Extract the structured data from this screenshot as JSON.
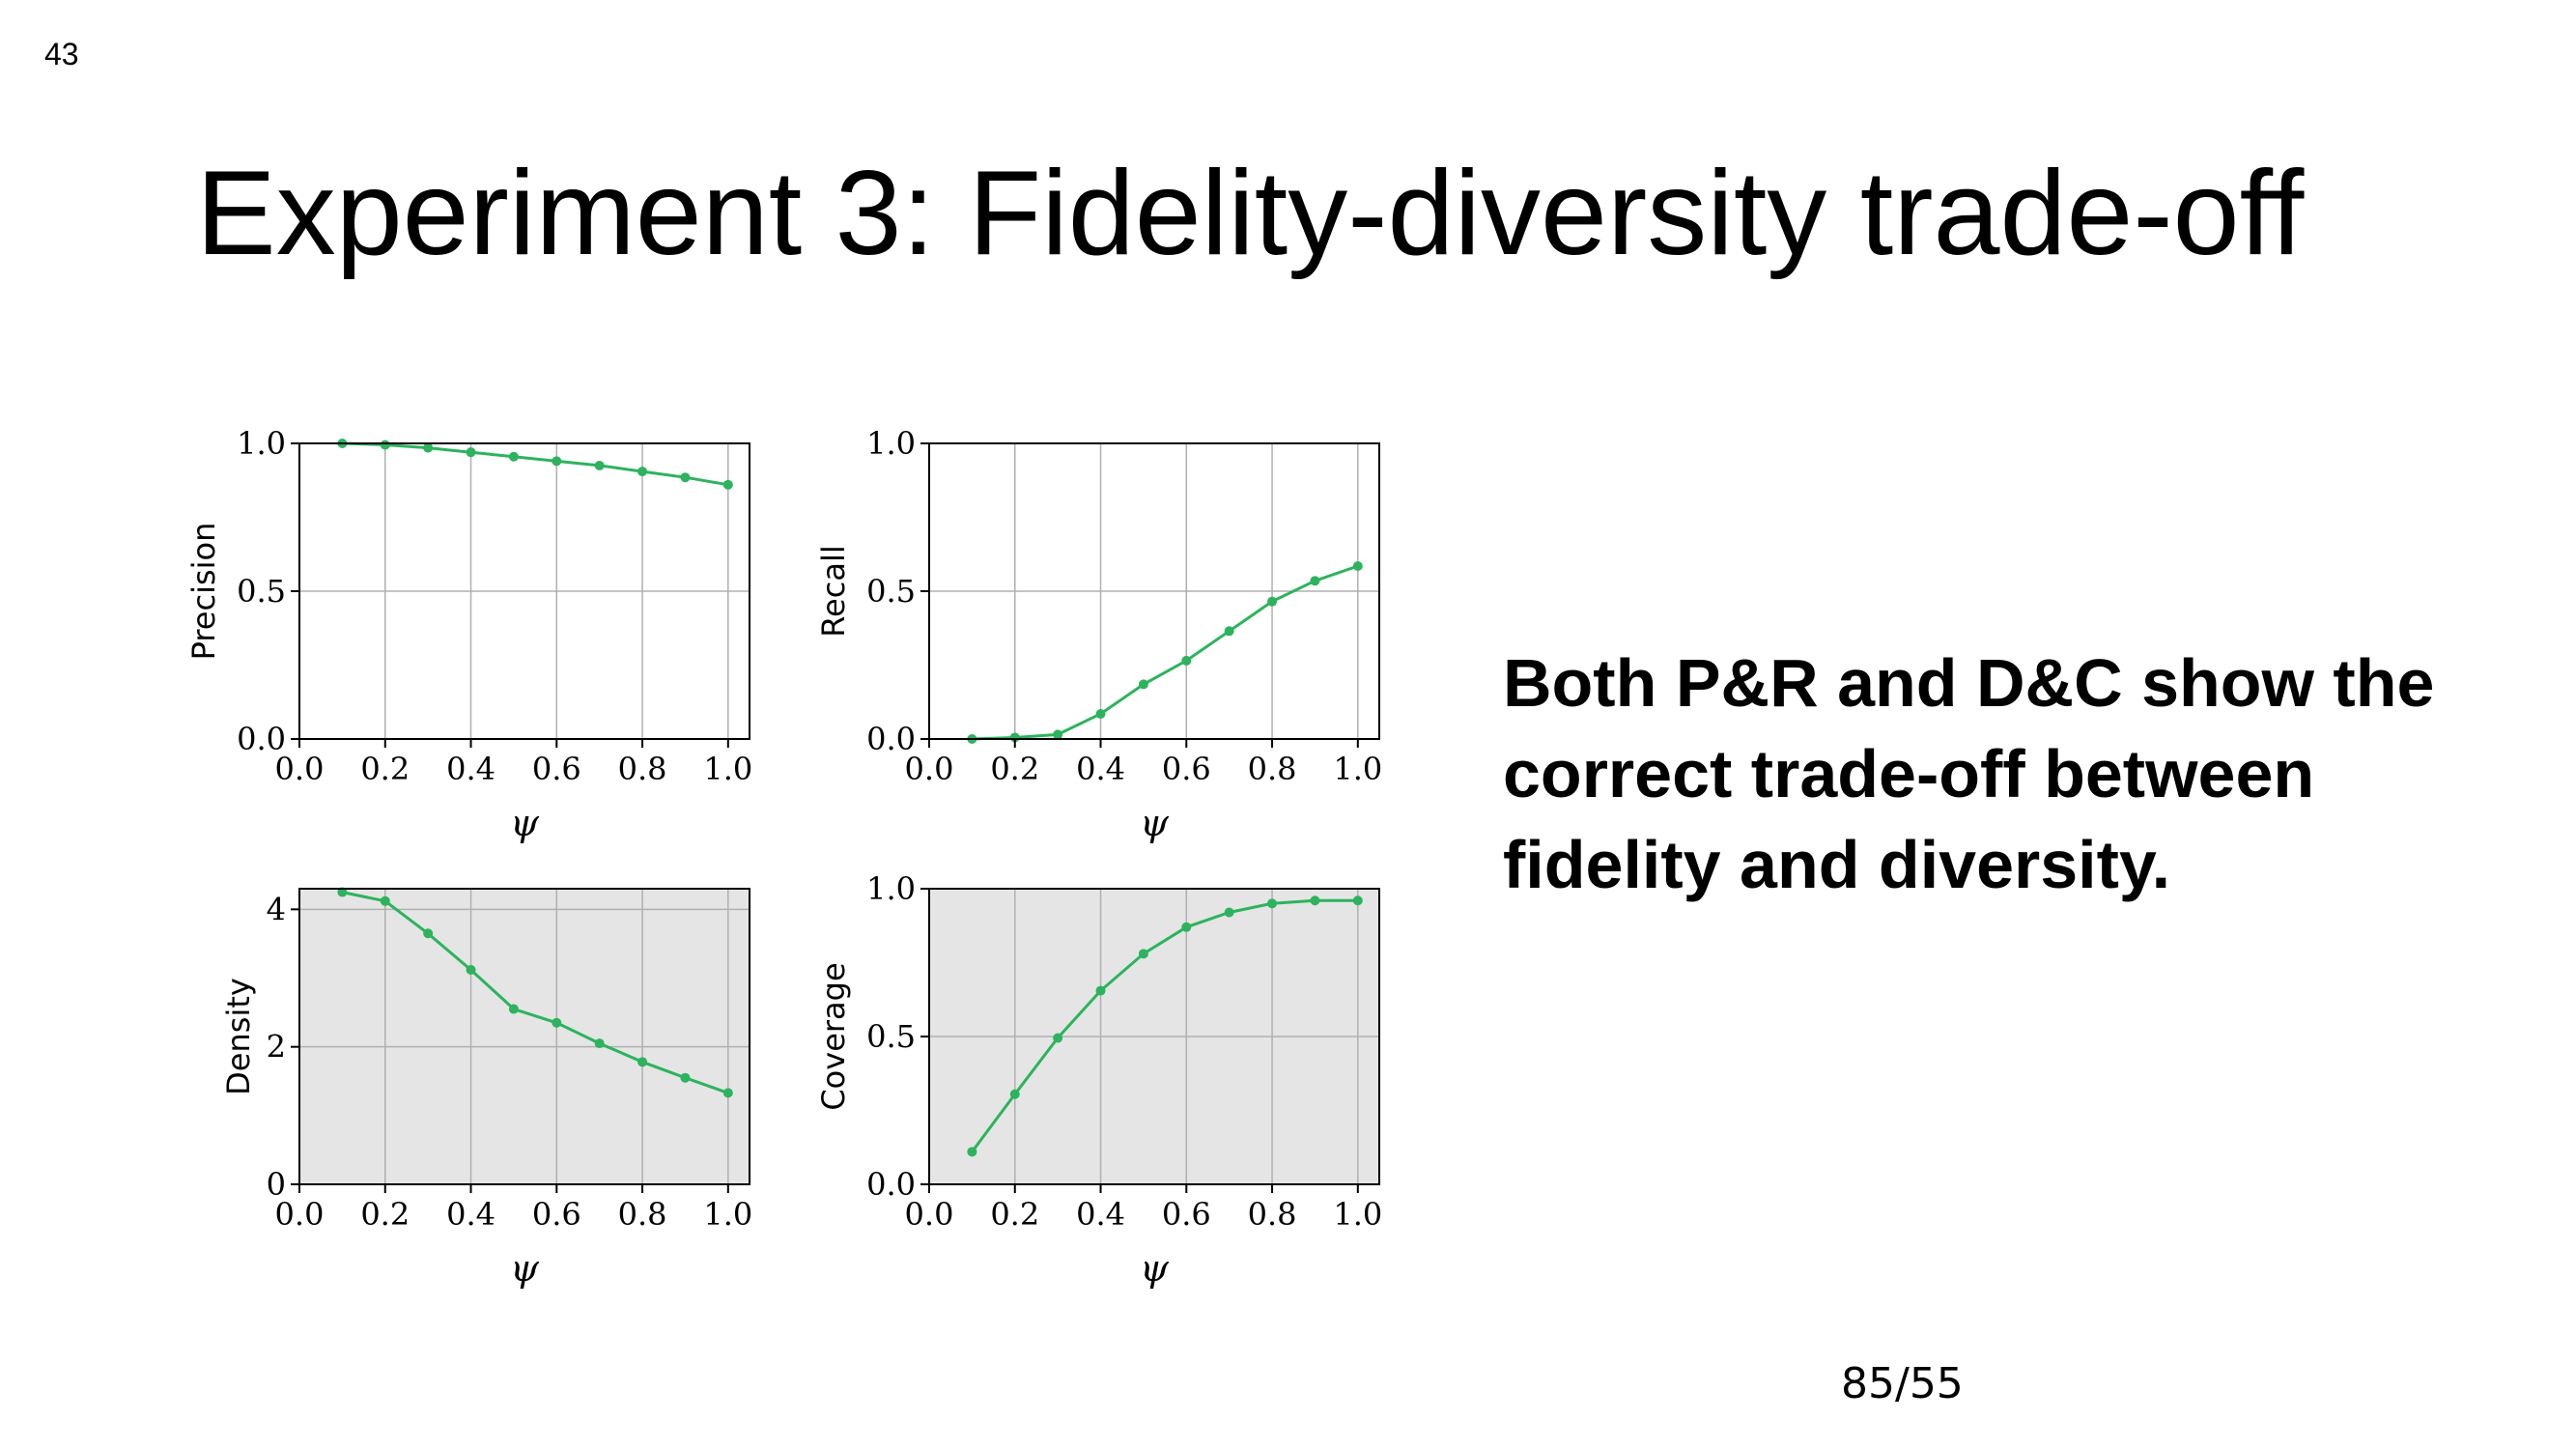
{
  "slide": {
    "number": "43",
    "title": "Experiment 3: Fidelity-diversity trade-off",
    "summary": "Both P&R and D&C show the correct trade-off between fidelity and diversity.",
    "page_counter": "85/55"
  },
  "colors": {
    "line": "#2db35d",
    "grid": "#b0b0b0",
    "shaded_bg": "#e5e5e5",
    "axis": "#000000"
  },
  "chart_data": [
    {
      "type": "line",
      "ylabel": "Precision",
      "xlabel": "ψ",
      "background": "white",
      "x": [
        0.1,
        0.2,
        0.3,
        0.4,
        0.5,
        0.6,
        0.7,
        0.8,
        0.9,
        1.0
      ],
      "y": [
        1.0,
        0.995,
        0.985,
        0.97,
        0.955,
        0.94,
        0.925,
        0.905,
        0.885,
        0.86
      ],
      "xlim": [
        0.0,
        1.05
      ],
      "ylim": [
        0.0,
        1.0
      ],
      "xticks": [
        "0.0",
        "0.2",
        "0.4",
        "0.6",
        "0.8",
        "1.0"
      ],
      "yticks": [
        "0.0",
        "0.5",
        "1.0"
      ],
      "grid": true
    },
    {
      "type": "line",
      "ylabel": "Recall",
      "xlabel": "ψ",
      "background": "white",
      "x": [
        0.1,
        0.2,
        0.3,
        0.4,
        0.5,
        0.6,
        0.7,
        0.8,
        0.9,
        1.0
      ],
      "y": [
        0.0,
        0.005,
        0.015,
        0.085,
        0.185,
        0.265,
        0.365,
        0.465,
        0.535,
        0.585
      ],
      "xlim": [
        0.0,
        1.05
      ],
      "ylim": [
        0.0,
        1.0
      ],
      "xticks": [
        "0.0",
        "0.2",
        "0.4",
        "0.6",
        "0.8",
        "1.0"
      ],
      "yticks": [
        "0.0",
        "0.5",
        "1.0"
      ],
      "grid": true
    },
    {
      "type": "line",
      "ylabel": "Density",
      "xlabel": "ψ",
      "background": "shaded",
      "x": [
        0.1,
        0.2,
        0.3,
        0.4,
        0.5,
        0.6,
        0.7,
        0.8,
        0.9,
        1.0
      ],
      "y": [
        4.25,
        4.12,
        3.65,
        3.12,
        2.55,
        2.35,
        2.05,
        1.78,
        1.55,
        1.33
      ],
      "xlim": [
        0.0,
        1.05
      ],
      "ylim": [
        0.0,
        4.3
      ],
      "xticks": [
        "0.0",
        "0.2",
        "0.4",
        "0.6",
        "0.8",
        "1.0"
      ],
      "yticks": [
        "0",
        "2",
        "4"
      ],
      "grid": true
    },
    {
      "type": "line",
      "ylabel": "Coverage",
      "xlabel": "ψ",
      "background": "shaded",
      "x": [
        0.1,
        0.2,
        0.3,
        0.4,
        0.5,
        0.6,
        0.7,
        0.8,
        0.9,
        1.0
      ],
      "y": [
        0.11,
        0.305,
        0.495,
        0.655,
        0.78,
        0.87,
        0.92,
        0.95,
        0.96,
        0.96
      ],
      "xlim": [
        0.0,
        1.05
      ],
      "ylim": [
        0.0,
        1.0
      ],
      "xticks": [
        "0.0",
        "0.2",
        "0.4",
        "0.6",
        "0.8",
        "1.0"
      ],
      "yticks": [
        "0.0",
        "0.5",
        "1.0"
      ],
      "grid": true
    }
  ]
}
